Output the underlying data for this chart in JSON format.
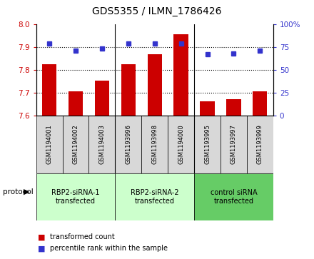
{
  "title": "GDS5355 / ILMN_1786426",
  "samples": [
    "GSM1194001",
    "GSM1194002",
    "GSM1194003",
    "GSM1193996",
    "GSM1193998",
    "GSM1194000",
    "GSM1193995",
    "GSM1193997",
    "GSM1193999"
  ],
  "red_values": [
    7.824,
    7.706,
    7.754,
    7.824,
    7.868,
    7.958,
    7.662,
    7.672,
    7.706
  ],
  "blue_values": [
    79,
    71,
    74,
    79,
    79,
    79,
    67,
    68,
    71
  ],
  "ylim_left": [
    7.6,
    8.0
  ],
  "ylim_right": [
    0,
    100
  ],
  "yticks_left": [
    7.6,
    7.7,
    7.8,
    7.9,
    8.0
  ],
  "yticks_right": [
    0,
    25,
    50,
    75,
    100
  ],
  "groups": [
    {
      "label": "RBP2-siRNA-1\ntransfected",
      "indices": [
        0,
        1,
        2
      ],
      "color": "#ccffcc"
    },
    {
      "label": "RBP2-siRNA-2\ntransfected",
      "indices": [
        3,
        4,
        5
      ],
      "color": "#ccffcc"
    },
    {
      "label": "control siRNA\ntransfected",
      "indices": [
        6,
        7,
        8
      ],
      "color": "#66cc66"
    }
  ],
  "red_color": "#cc0000",
  "blue_color": "#3333cc",
  "bar_bg": "#d8d8d8",
  "left_tick_color": "#cc0000",
  "right_tick_color": "#3333cc",
  "protocol_label": "protocol",
  "legend_red": "transformed count",
  "legend_blue": "percentile rank within the sample",
  "figsize": [
    4.4,
    3.63
  ],
  "dpi": 100
}
